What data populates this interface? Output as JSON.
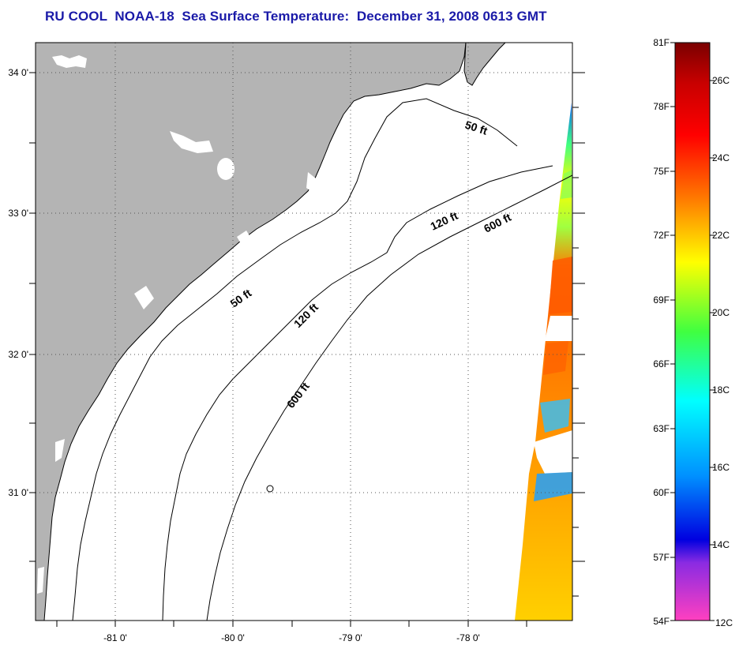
{
  "title": "RU COOL  NOAA-18  Sea Surface Temperature:  December 31, 2008 0613 GMT",
  "map": {
    "lat_labels": [
      "34 0'",
      "33 0'",
      "32 0'",
      "31 0'"
    ],
    "lon_labels": [
      "-81 0'",
      "-80 0'",
      "-79 0'",
      "-78 0'"
    ],
    "contour_labels": [
      {
        "id": "contour-label-50ft-north",
        "text": "50 ft"
      },
      {
        "id": "contour-label-120ft-north",
        "text": "120 ft"
      },
      {
        "id": "contour-label-600ft-north",
        "text": "600 ft"
      },
      {
        "id": "contour-label-50ft-south",
        "text": "50 ft"
      },
      {
        "id": "contour-label-120ft-south",
        "text": "120 ft"
      },
      {
        "id": "contour-label-600ft-south",
        "text": "600 ft"
      }
    ]
  },
  "colorbar": {
    "fahrenheit_labels": [
      "81F",
      "78F",
      "75F",
      "72F",
      "69F",
      "66F",
      "63F",
      "60F",
      "57F",
      "54F"
    ],
    "celsius_labels": [
      "26C",
      "24C",
      "22C",
      "20C",
      "18C",
      "16C",
      "14C",
      "12C"
    ],
    "colors": {
      "top": "#7a0000",
      "red": "#ff0000",
      "orange": "#ff7a00",
      "yellow": "#ffff00",
      "green": "#40ff40",
      "cyan": "#00ffff",
      "blue": "#0040ff",
      "deep_blue": "#0000e0",
      "purple": "#8a2be2",
      "magenta": "#ff40c0"
    }
  }
}
